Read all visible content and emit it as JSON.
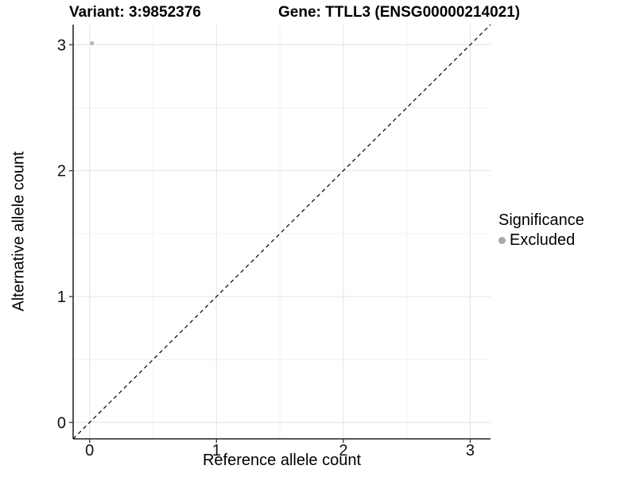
{
  "titles": {
    "variant": "Variant: 3:9852376",
    "gene": "Gene: TTLL3 (ENSG00000214021)"
  },
  "legend": {
    "title": "Significance",
    "position": "right",
    "items": [
      {
        "label": "Excluded",
        "color": "#a8a8a8"
      }
    ]
  },
  "style": {
    "grid_major_color": "#e6e6e6",
    "grid_minor_color": "#f2f2f2",
    "axis_line_color": "#404040",
    "tick_text_color": "#111111",
    "reference_line_color": "#000000",
    "point_color": "#b5b5b5",
    "background_color": "#ffffff"
  },
  "chart_data": {
    "type": "scatter",
    "title": "Variant: 3:9852376    Gene: TTLL3 (ENSG00000214021)",
    "xlabel": "Reference allele count",
    "ylabel": "Alternative allele count",
    "xlim": [
      -0.13,
      3.16
    ],
    "ylim": [
      -0.13,
      3.16
    ],
    "x_ticks": [
      0,
      1,
      2,
      3
    ],
    "y_ticks": [
      0,
      1,
      2,
      3
    ],
    "x_minor_ticks": [
      0.5,
      1.5,
      2.5
    ],
    "y_minor_ticks": [
      0.5,
      1.5,
      2.5
    ],
    "grid": "on",
    "legend_position": "right",
    "series": [
      {
        "name": "Excluded",
        "color": "#b5b5b5",
        "points": [
          {
            "x": 0,
            "y": 3
          }
        ]
      }
    ],
    "reference_line": {
      "type": "identity y=x",
      "style": "dashed",
      "color": "#000000"
    }
  }
}
